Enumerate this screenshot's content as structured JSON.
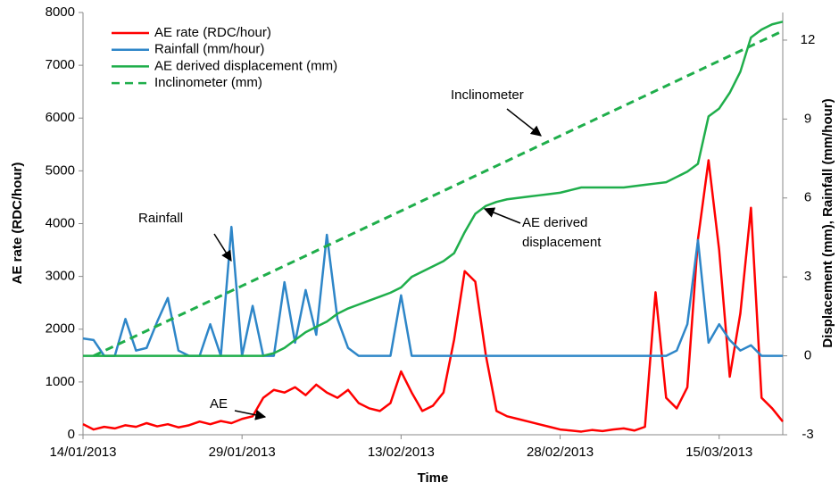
{
  "chart_data": {
    "type": "line",
    "x_label": "Time",
    "y_label": "AE rate (RDC/hour)",
    "y2_label": "Displacement (mm), Rainfall (mm/hour)",
    "x": [
      "14/01/2013",
      "15/01/2013",
      "16/01/2013",
      "17/01/2013",
      "18/01/2013",
      "19/01/2013",
      "20/01/2013",
      "21/01/2013",
      "22/01/2013",
      "23/01/2013",
      "24/01/2013",
      "25/01/2013",
      "26/01/2013",
      "27/01/2013",
      "28/01/2013",
      "29/01/2013",
      "30/01/2013",
      "31/01/2013",
      "01/02/2013",
      "02/02/2013",
      "03/02/2013",
      "04/02/2013",
      "05/02/2013",
      "06/02/2013",
      "07/02/2013",
      "08/02/2013",
      "09/02/2013",
      "10/02/2013",
      "11/02/2013",
      "12/02/2013",
      "13/02/2013",
      "14/02/2013",
      "15/02/2013",
      "16/02/2013",
      "17/02/2013",
      "18/02/2013",
      "19/02/2013",
      "20/02/2013",
      "21/02/2013",
      "22/02/2013",
      "23/02/2013",
      "24/02/2013",
      "25/02/2013",
      "26/02/2013",
      "27/02/2013",
      "28/02/2013",
      "01/03/2013",
      "02/03/2013",
      "03/03/2013",
      "04/03/2013",
      "05/03/2013",
      "06/03/2013",
      "07/03/2013",
      "08/03/2013",
      "09/03/2013",
      "10/03/2013",
      "11/03/2013",
      "12/03/2013",
      "13/03/2013",
      "14/03/2013",
      "15/03/2013",
      "16/03/2013",
      "17/03/2013",
      "18/03/2013",
      "19/03/2013",
      "20/03/2013",
      "21/03/2013"
    ],
    "xlim": [
      "14/01/2013",
      "21/03/2013"
    ],
    "xticks": [
      "14/01/2013",
      "29/01/2013",
      "13/02/2013",
      "28/02/2013",
      "15/03/2013"
    ],
    "ylim": [
      0,
      8000
    ],
    "yticks": [
      0,
      1000,
      2000,
      3000,
      4000,
      5000,
      6000,
      7000,
      8000
    ],
    "y2lim": [
      -3,
      13.05
    ],
    "y2ticks": [
      -3,
      0,
      3,
      6,
      9,
      12
    ],
    "legend": "upper left",
    "series": [
      {
        "name": "AE rate (RDC/hour)",
        "color": "#ff0000",
        "style": "solid",
        "values": [
          200,
          100,
          150,
          120,
          180,
          150,
          220,
          160,
          200,
          140,
          180,
          250,
          200,
          260,
          220,
          300,
          350,
          700,
          850,
          800,
          900,
          750,
          950,
          800,
          700,
          850,
          600,
          500,
          450,
          600,
          1200,
          800,
          450,
          550,
          800,
          1800,
          3100,
          2900,
          1500,
          450,
          350,
          300,
          250,
          200,
          150,
          100,
          80,
          60,
          90,
          70,
          100,
          120,
          80,
          150,
          2700,
          700,
          500,
          900,
          3700,
          5200,
          3500,
          1100,
          2300,
          4300,
          700,
          500,
          250
        ]
      },
      {
        "name": "Rainfall (mm/hour)",
        "color": "#2e86c8",
        "style": "solid",
        "axis": "y2",
        "values": [
          0.66,
          0.6,
          0,
          0,
          1.4,
          0.2,
          0.3,
          1.3,
          2.2,
          0.2,
          0,
          0,
          1.2,
          0,
          4.9,
          0,
          1.9,
          0,
          0,
          2.8,
          0.5,
          2.5,
          0.8,
          4.6,
          1.4,
          0.3,
          0,
          0,
          0,
          0,
          2.3,
          0,
          0,
          0,
          0,
          0,
          0,
          0,
          0,
          0,
          0,
          0,
          0,
          0,
          0,
          0,
          0,
          0,
          0,
          0,
          0,
          0,
          0,
          0,
          0,
          0,
          0.2,
          1.2,
          4.4,
          0.5,
          1.2,
          0.6,
          0.2,
          0.4,
          0,
          0,
          0
        ]
      },
      {
        "name": "AE derived displacement (mm)",
        "color": "#1fae4b",
        "style": "solid",
        "axis": "y2",
        "values": [
          0,
          0,
          0,
          0,
          0,
          0,
          0,
          0,
          0,
          0,
          0,
          0,
          0,
          0,
          0,
          0,
          0,
          0,
          0.1,
          0.3,
          0.6,
          0.9,
          1.1,
          1.3,
          1.6,
          1.8,
          1.95,
          2.1,
          2.25,
          2.4,
          2.6,
          3.0,
          3.2,
          3.4,
          3.6,
          3.9,
          4.7,
          5.4,
          5.7,
          5.85,
          5.95,
          6.0,
          6.05,
          6.1,
          6.15,
          6.2,
          6.3,
          6.4,
          6.4,
          6.4,
          6.4,
          6.4,
          6.45,
          6.5,
          6.55,
          6.6,
          6.8,
          7.0,
          7.3,
          9.1,
          9.4,
          10.0,
          10.8,
          12.1,
          12.4,
          12.6,
          12.7
        ]
      },
      {
        "name": "Inclinometer (mm)",
        "color": "#1fae4b",
        "style": "dashed",
        "axis": "y2",
        "values": [
          null,
          0,
          0.19,
          0.38,
          0.57,
          0.76,
          0.95,
          1.14,
          1.33,
          1.52,
          1.71,
          1.9,
          2.09,
          2.28,
          2.47,
          2.66,
          2.85,
          3.04,
          3.23,
          3.42,
          3.61,
          3.8,
          3.99,
          4.18,
          4.37,
          4.56,
          4.75,
          4.94,
          5.13,
          5.32,
          5.51,
          5.7,
          5.89,
          6.08,
          6.27,
          6.46,
          6.65,
          6.84,
          7.03,
          7.22,
          7.41,
          7.6,
          7.79,
          7.98,
          8.17,
          8.36,
          8.55,
          8.74,
          8.93,
          9.12,
          9.31,
          9.5,
          9.69,
          9.88,
          10.07,
          10.26,
          10.45,
          10.64,
          10.83,
          11.02,
          11.21,
          11.4,
          11.59,
          11.78,
          11.97,
          12.16,
          12.35
        ]
      }
    ],
    "annotations": [
      {
        "text": [
          "Rainfall"
        ]
      },
      {
        "text": [
          "AE"
        ]
      },
      {
        "text": [
          "Inclinometer"
        ]
      },
      {
        "text": [
          "AE derived",
          "displacement"
        ]
      }
    ]
  }
}
